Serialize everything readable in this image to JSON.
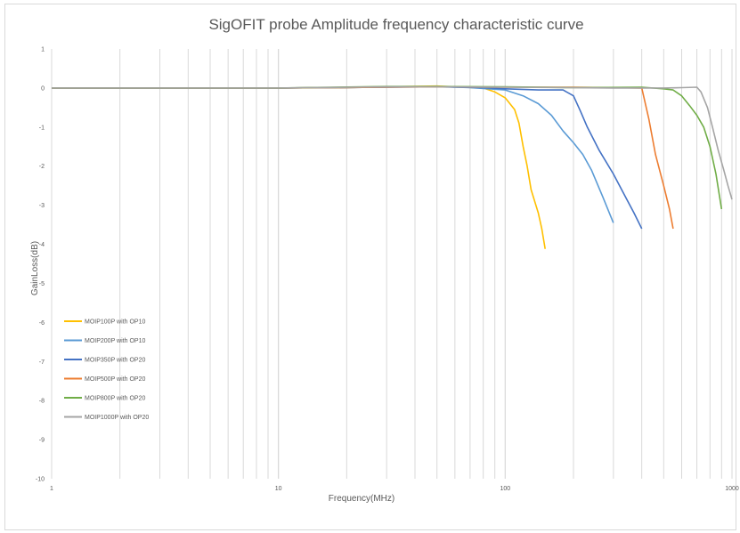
{
  "chart_data": {
    "type": "line",
    "title": "SigOFIT probe Amplitude frequency characteristic curve",
    "xlabel": "Frequency(MHz)",
    "ylabel": "GainLoss(dB)",
    "x_scale": "log",
    "xlim": [
      1,
      1000
    ],
    "ylim": [
      -10,
      1
    ],
    "x_ticks": [
      "1",
      "10",
      "100",
      "1000"
    ],
    "y_ticks": [
      "1",
      "0",
      "-1",
      "-2",
      "-3",
      "-4",
      "-5",
      "-6",
      "-7",
      "-8",
      "-9",
      "-10"
    ],
    "grid": "vertical log gridlines",
    "legend_position": "bottom-left",
    "series": [
      {
        "name": "MOIP100P with OP10",
        "color": "#ffc000",
        "points": [
          [
            1,
            0
          ],
          [
            10,
            0
          ],
          [
            20,
            0.01
          ],
          [
            30,
            0.03
          ],
          [
            50,
            0.05
          ],
          [
            60,
            0.03
          ],
          [
            80,
            0
          ],
          [
            90,
            -0.1
          ],
          [
            100,
            -0.25
          ],
          [
            110,
            -0.55
          ],
          [
            115,
            -0.9
          ],
          [
            120,
            -1.5
          ],
          [
            125,
            -2.0
          ],
          [
            130,
            -2.6
          ],
          [
            140,
            -3.2
          ],
          [
            145,
            -3.6
          ],
          [
            150,
            -4.12
          ]
        ]
      },
      {
        "name": "MOIP200P with OP10",
        "color": "#5b9bd5",
        "points": [
          [
            1,
            0
          ],
          [
            10,
            0
          ],
          [
            30,
            0.02
          ],
          [
            50,
            0.04
          ],
          [
            70,
            0.01
          ],
          [
            100,
            -0.05
          ],
          [
            120,
            -0.2
          ],
          [
            140,
            -0.4
          ],
          [
            160,
            -0.7
          ],
          [
            180,
            -1.1
          ],
          [
            200,
            -1.4
          ],
          [
            220,
            -1.7
          ],
          [
            240,
            -2.1
          ],
          [
            270,
            -2.8
          ],
          [
            300,
            -3.45
          ]
        ]
      },
      {
        "name": "MOIP350P with OP20",
        "color": "#4472c4",
        "points": [
          [
            1,
            0
          ],
          [
            10,
            0
          ],
          [
            30,
            0.02
          ],
          [
            50,
            0.03
          ],
          [
            80,
            0.01
          ],
          [
            100,
            -0.02
          ],
          [
            140,
            -0.05
          ],
          [
            180,
            -0.05
          ],
          [
            200,
            -0.2
          ],
          [
            215,
            -0.6
          ],
          [
            230,
            -1.0
          ],
          [
            260,
            -1.6
          ],
          [
            300,
            -2.2
          ],
          [
            340,
            -2.8
          ],
          [
            370,
            -3.2
          ],
          [
            400,
            -3.6
          ]
        ]
      },
      {
        "name": "MOIP500P with OP20",
        "color": "#ed7d31",
        "points": [
          [
            1,
            0
          ],
          [
            10,
            0
          ],
          [
            30,
            0.02
          ],
          [
            50,
            0.03
          ],
          [
            100,
            0.02
          ],
          [
            200,
            0.02
          ],
          [
            300,
            0.01
          ],
          [
            400,
            0
          ],
          [
            430,
            -0.8
          ],
          [
            460,
            -1.7
          ],
          [
            500,
            -2.5
          ],
          [
            530,
            -3.1
          ],
          [
            550,
            -3.6
          ]
        ]
      },
      {
        "name": "MOIP800P with OP20",
        "color": "#70ad47",
        "points": [
          [
            1,
            0
          ],
          [
            10,
            0
          ],
          [
            30,
            0.04
          ],
          [
            50,
            0.04
          ],
          [
            100,
            0.03
          ],
          [
            200,
            0.01
          ],
          [
            400,
            0.02
          ],
          [
            500,
            -0.02
          ],
          [
            550,
            -0.05
          ],
          [
            600,
            -0.2
          ],
          [
            650,
            -0.45
          ],
          [
            700,
            -0.7
          ],
          [
            750,
            -1.0
          ],
          [
            800,
            -1.5
          ],
          [
            850,
            -2.2
          ],
          [
            900,
            -3.1
          ]
        ]
      },
      {
        "name": "MOIP1000P with OP20",
        "color": "#a5a5a5",
        "points": [
          [
            1,
            0
          ],
          [
            10,
            0
          ],
          [
            30,
            0.03
          ],
          [
            50,
            0.03
          ],
          [
            100,
            0.02
          ],
          [
            300,
            0
          ],
          [
            500,
            0
          ],
          [
            600,
            0.01
          ],
          [
            700,
            0.02
          ],
          [
            730,
            -0.1
          ],
          [
            780,
            -0.5
          ],
          [
            820,
            -1.0
          ],
          [
            870,
            -1.6
          ],
          [
            920,
            -2.1
          ],
          [
            960,
            -2.5
          ],
          [
            1000,
            -2.85
          ]
        ]
      }
    ]
  }
}
